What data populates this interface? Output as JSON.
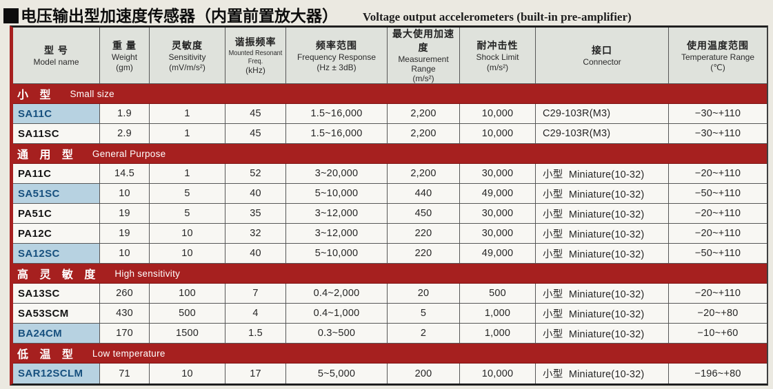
{
  "title": "电压输出型加速度传感器（内置前置放大器）",
  "subtitle": "Voltage output accelerometers (built-in pre-amplifier)",
  "colors": {
    "section_bar": "#a6201f",
    "highlight_cell_bg": "#b7d2e1",
    "highlight_cell_text": "#17507e",
    "header_bg": "#dfe2dc"
  },
  "table": {
    "columns": [
      {
        "zh": "型  号",
        "en": "Model name",
        "unit": ""
      },
      {
        "zh": "重  量",
        "en": "Weight",
        "unit": "(gm)"
      },
      {
        "zh": "灵敏度",
        "en": "Sensitivity",
        "unit": "(mV/m/s²)"
      },
      {
        "zh": "谐振频率",
        "en": "Mounted Resonant Freq.",
        "unit": "(kHz)"
      },
      {
        "zh": "频率范围",
        "en": "Frequency Response",
        "unit": "(Hz ± 3dB)"
      },
      {
        "zh": "最大使用加速度",
        "en": "Measurement Range",
        "unit": "(m/s²)"
      },
      {
        "zh": "耐冲击性",
        "en": "Shock Limit",
        "unit": "(m/s²)"
      },
      {
        "zh": "接口",
        "en": "Connector",
        "unit": ""
      },
      {
        "zh": "使用温度范围",
        "en": "Temperature Range",
        "unit": "(℃)"
      }
    ],
    "sections": [
      {
        "zh": "小 型",
        "en": "Small size",
        "rows": [
          {
            "model": "SA11C",
            "highlighted": true,
            "weight": "1.9",
            "sensitivity": "1",
            "resonant": "45",
            "freq": "1.5~16,000",
            "range": "2,200",
            "shock": "10,000",
            "connector": "C29-103R(M3)",
            "temp": "−30~+110"
          },
          {
            "model": "SA11SC",
            "highlighted": false,
            "weight": "2.9",
            "sensitivity": "1",
            "resonant": "45",
            "freq": "1.5~16,000",
            "range": "2,200",
            "shock": "10,000",
            "connector": "C29-103R(M3)",
            "temp": "−30~+110"
          }
        ]
      },
      {
        "zh": "通 用 型",
        "en": "General Purpose",
        "rows": [
          {
            "model": "PA11C",
            "highlighted": false,
            "weight": "14.5",
            "sensitivity": "1",
            "resonant": "52",
            "freq": "3~20,000",
            "range": "2,200",
            "shock": "30,000",
            "connector": "小型  Miniature(10-32)",
            "temp": "−20~+110"
          },
          {
            "model": "SA51SC",
            "highlighted": true,
            "weight": "10",
            "sensitivity": "5",
            "resonant": "40",
            "freq": "5~10,000",
            "range": "440",
            "shock": "49,000",
            "connector": "小型  Miniature(10-32)",
            "temp": "−50~+110"
          },
          {
            "model": "PA51C",
            "highlighted": false,
            "weight": "19",
            "sensitivity": "5",
            "resonant": "35",
            "freq": "3~12,000",
            "range": "450",
            "shock": "30,000",
            "connector": "小型  Miniature(10-32)",
            "temp": "−20~+110"
          },
          {
            "model": "PA12C",
            "highlighted": false,
            "weight": "19",
            "sensitivity": "10",
            "resonant": "32",
            "freq": "3~12,000",
            "range": "220",
            "shock": "30,000",
            "connector": "小型  Miniature(10-32)",
            "temp": "−20~+110"
          },
          {
            "model": "SA12SC",
            "highlighted": true,
            "weight": "10",
            "sensitivity": "10",
            "resonant": "40",
            "freq": "5~10,000",
            "range": "220",
            "shock": "49,000",
            "connector": "小型  Miniature(10-32)",
            "temp": "−50~+110"
          }
        ]
      },
      {
        "zh": "高 灵 敏 度",
        "en": "High sensitivity",
        "rows": [
          {
            "model": "SA13SC",
            "highlighted": false,
            "weight": "260",
            "sensitivity": "100",
            "resonant": "7",
            "freq": "0.4~2,000",
            "range": "20",
            "shock": "500",
            "connector": "小型  Miniature(10-32)",
            "temp": "−20~+110"
          },
          {
            "model": "SA53SCM",
            "highlighted": false,
            "weight": "430",
            "sensitivity": "500",
            "resonant": "4",
            "freq": "0.4~1,000",
            "range": "5",
            "shock": "1,000",
            "connector": "小型  Miniature(10-32)",
            "temp": "−20~+80"
          },
          {
            "model": "BA24CM",
            "highlighted": true,
            "weight": "170",
            "sensitivity": "1500",
            "resonant": "1.5",
            "freq": "0.3~500",
            "range": "2",
            "shock": "1,000",
            "connector": "小型  Miniature(10-32)",
            "temp": "−10~+60"
          }
        ]
      },
      {
        "zh": "低 温 型",
        "en": "Low temperature",
        "rows": [
          {
            "model": "SAR12SCLM",
            "highlighted": true,
            "weight": "71",
            "sensitivity": "10",
            "resonant": "17",
            "freq": "5~5,000",
            "range": "200",
            "shock": "10,000",
            "connector": "小型  Miniature(10-32)",
            "temp": "−196~+80"
          }
        ]
      }
    ]
  }
}
